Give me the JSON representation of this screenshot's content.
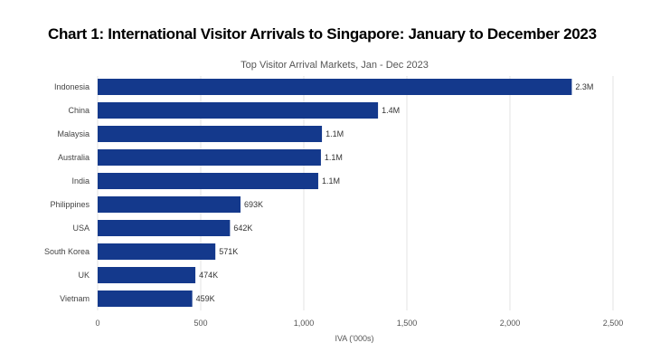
{
  "heading": "Chart 1: International Visitor Arrivals to Singapore: January to December 2023",
  "chart_data": {
    "type": "bar",
    "orientation": "horizontal",
    "title": "Top Visitor Arrival Markets, Jan - Dec 2023",
    "xlabel": "IVA ('000s)",
    "ylabel": "",
    "xlim": [
      0,
      2500
    ],
    "xticks": [
      0,
      500,
      1000,
      1500,
      2000,
      2500
    ],
    "xtick_labels": [
      "0",
      "500",
      "1,000",
      "1,500",
      "2,000",
      "2,500"
    ],
    "grid": true,
    "categories": [
      "Indonesia",
      "China",
      "Malaysia",
      "Australia",
      "India",
      "Philippines",
      "USA",
      "South Korea",
      "UK",
      "Vietnam"
    ],
    "values": [
      2300,
      1360,
      1088,
      1083,
      1070,
      693,
      642,
      571,
      474,
      459
    ],
    "data_labels": [
      "2.3M",
      "1.4M",
      "1.1M",
      "1.1M",
      "1.1M",
      "693K",
      "642K",
      "571K",
      "474K",
      "459K"
    ],
    "bar_color": "#14398c"
  }
}
